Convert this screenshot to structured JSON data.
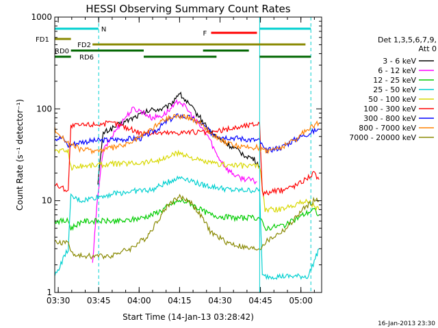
{
  "chart_data": {
    "type": "line",
    "title": "HESSI Observing Summary Count Rates",
    "xlabel": "Start Time (14-Jan-13 03:28:42)",
    "ylabel": "Count Rate (s⁻¹ detector⁻¹)",
    "x_unit": "minutes after 03:28:42",
    "xlim": [
      0,
      99
    ],
    "ylim": [
      1,
      1000
    ],
    "yscale": "log",
    "x_ticks": [
      {
        "label": "03:30",
        "value": 1.3
      },
      {
        "label": "03:45",
        "value": 16.3
      },
      {
        "label": "04:00",
        "value": 31.3
      },
      {
        "label": "04:15",
        "value": 46.3
      },
      {
        "label": "04:30",
        "value": 61.3
      },
      {
        "label": "04:45",
        "value": 76.3
      },
      {
        "label": "05:00",
        "value": 91.3
      }
    ],
    "y_ticks": [
      {
        "label": "1",
        "value": 1
      },
      {
        "label": "10",
        "value": 10
      },
      {
        "label": "100",
        "value": 100
      },
      {
        "label": "1000",
        "value": 1000
      }
    ],
    "legend": {
      "header": [
        "Det 1,3,5,6,7,9,",
        "Att 0"
      ],
      "placement": "right-outside"
    },
    "series": [
      {
        "name": "3 - 6 keV",
        "color": "#000000",
        "points": [
          [
            16,
            16
          ],
          [
            18,
            55
          ],
          [
            25,
            70
          ],
          [
            31,
            85
          ],
          [
            36,
            98
          ],
          [
            40,
            100
          ],
          [
            43,
            110
          ],
          [
            46,
            150
          ],
          [
            50,
            110
          ],
          [
            54,
            80
          ],
          [
            58,
            55
          ],
          [
            62,
            45
          ],
          [
            66,
            38
          ],
          [
            70,
            32
          ],
          [
            74,
            28
          ],
          [
            76,
            24
          ]
        ]
      },
      {
        "name": "6 - 12 keV",
        "color": "#ff00ff",
        "points": [
          [
            14,
            2
          ],
          [
            16,
            12
          ],
          [
            18,
            35
          ],
          [
            22,
            55
          ],
          [
            26,
            80
          ],
          [
            29,
            100
          ],
          [
            32,
            95
          ],
          [
            36,
            80
          ],
          [
            40,
            85
          ],
          [
            44,
            105
          ],
          [
            46,
            125
          ],
          [
            49,
            100
          ],
          [
            53,
            70
          ],
          [
            57,
            50
          ],
          [
            60,
            32
          ],
          [
            64,
            22
          ],
          [
            68,
            18
          ],
          [
            72,
            17
          ],
          [
            75,
            16
          ]
        ]
      },
      {
        "name": "12 - 25 keV",
        "color": "#00cc00",
        "points": [
          [
            0,
            6
          ],
          [
            5,
            6
          ],
          [
            6,
            5
          ],
          [
            10,
            6
          ],
          [
            18,
            6
          ],
          [
            26,
            6
          ],
          [
            32,
            6.5
          ],
          [
            36,
            7
          ],
          [
            40,
            8
          ],
          [
            44,
            9.5
          ],
          [
            47,
            10
          ],
          [
            50,
            9.5
          ],
          [
            54,
            8
          ],
          [
            58,
            7
          ],
          [
            66,
            6.5
          ],
          [
            76,
            6.5
          ],
          [
            78,
            5
          ],
          [
            86,
            5.5
          ],
          [
            92,
            7
          ],
          [
            96,
            8
          ],
          [
            98,
            7
          ]
        ]
      },
      {
        "name": "25 - 50 keV",
        "color": "#00d0d0",
        "points": [
          [
            0,
            1.5
          ],
          [
            5,
            3
          ],
          [
            6,
            11
          ],
          [
            10,
            10
          ],
          [
            16,
            11
          ],
          [
            22,
            12
          ],
          [
            32,
            13
          ],
          [
            36,
            13
          ],
          [
            40,
            15
          ],
          [
            44,
            17
          ],
          [
            47,
            18
          ],
          [
            50,
            17
          ],
          [
            54,
            15
          ],
          [
            60,
            14
          ],
          [
            66,
            13
          ],
          [
            76,
            13
          ],
          [
            77,
            1.5
          ],
          [
            94,
            1.5
          ],
          [
            97,
            2.5
          ],
          [
            98,
            3
          ]
        ]
      },
      {
        "name": "50 - 100 keV",
        "color": "#d8d800",
        "points": [
          [
            0,
            35
          ],
          [
            5,
            35
          ],
          [
            6,
            23
          ],
          [
            10,
            24
          ],
          [
            20,
            25
          ],
          [
            32,
            26
          ],
          [
            40,
            28
          ],
          [
            44,
            32
          ],
          [
            47,
            33
          ],
          [
            50,
            30
          ],
          [
            54,
            27
          ],
          [
            60,
            25
          ],
          [
            70,
            24
          ],
          [
            76,
            24
          ],
          [
            78,
            8
          ],
          [
            84,
            8
          ],
          [
            88,
            9
          ],
          [
            94,
            10
          ],
          [
            98,
            8
          ]
        ]
      },
      {
        "name": "100 - 300 keV",
        "color": "#ff0000",
        "points": [
          [
            0,
            15
          ],
          [
            5,
            13
          ],
          [
            6,
            65
          ],
          [
            14,
            68
          ],
          [
            22,
            70
          ],
          [
            32,
            55
          ],
          [
            40,
            55
          ],
          [
            44,
            55
          ],
          [
            47,
            56
          ],
          [
            52,
            56
          ],
          [
            58,
            55
          ],
          [
            64,
            60
          ],
          [
            70,
            65
          ],
          [
            76,
            70
          ],
          [
            77,
            12
          ],
          [
            84,
            13
          ],
          [
            90,
            15
          ],
          [
            96,
            20
          ],
          [
            98,
            17
          ]
        ]
      },
      {
        "name": "300 - 800 keV",
        "color": "#0000ff",
        "points": [
          [
            0,
            48
          ],
          [
            3,
            48
          ],
          [
            5,
            40
          ],
          [
            10,
            44
          ],
          [
            20,
            46
          ],
          [
            32,
            48
          ],
          [
            38,
            60
          ],
          [
            42,
            75
          ],
          [
            46,
            85
          ],
          [
            50,
            80
          ],
          [
            54,
            70
          ],
          [
            58,
            55
          ],
          [
            62,
            50
          ],
          [
            68,
            48
          ],
          [
            76,
            45
          ],
          [
            78,
            35
          ],
          [
            84,
            38
          ],
          [
            90,
            48
          ],
          [
            96,
            57
          ],
          [
            98,
            60
          ]
        ]
      },
      {
        "name": "800 - 7000 keV",
        "color": "#ff8000",
        "points": [
          [
            0,
            60
          ],
          [
            5,
            42
          ],
          [
            10,
            36
          ],
          [
            16,
            35
          ],
          [
            22,
            38
          ],
          [
            28,
            42
          ],
          [
            34,
            55
          ],
          [
            40,
            75
          ],
          [
            45,
            85
          ],
          [
            50,
            80
          ],
          [
            54,
            70
          ],
          [
            58,
            55
          ],
          [
            64,
            42
          ],
          [
            70,
            38
          ],
          [
            76,
            38
          ],
          [
            78,
            35
          ],
          [
            84,
            38
          ],
          [
            90,
            48
          ],
          [
            95,
            65
          ],
          [
            98,
            70
          ]
        ]
      },
      {
        "name": "7000 - 20000 keV",
        "color": "#888800",
        "points": [
          [
            0,
            3.5
          ],
          [
            5,
            3.5
          ],
          [
            7,
            2.5
          ],
          [
            12,
            2.5
          ],
          [
            20,
            2.5
          ],
          [
            28,
            3
          ],
          [
            34,
            4
          ],
          [
            38,
            6
          ],
          [
            42,
            9
          ],
          [
            46,
            11
          ],
          [
            50,
            10
          ],
          [
            54,
            7
          ],
          [
            58,
            4.5
          ],
          [
            64,
            3.5
          ],
          [
            72,
            3
          ],
          [
            76,
            3
          ],
          [
            78,
            3.5
          ],
          [
            86,
            5
          ],
          [
            92,
            8
          ],
          [
            96,
            10
          ],
          [
            98,
            10
          ]
        ]
      }
    ],
    "flag_bars": [
      {
        "label": "N",
        "color": "#00d0d0",
        "segments": [
          [
            0,
            16.2
          ],
          [
            76,
            95
          ]
        ]
      },
      {
        "label": "F",
        "color": "#ff0000",
        "segments": [
          [
            58,
            75
          ]
        ]
      },
      {
        "label": "FD1",
        "color": "#888800",
        "segments": [
          [
            0,
            6
          ]
        ]
      },
      {
        "label": "FD2",
        "color": "#888800",
        "segments": [
          [
            14,
            93
          ]
        ]
      },
      {
        "label": "RD0",
        "color": "#006600",
        "segments": [
          [
            6,
            33
          ],
          [
            55,
            72
          ]
        ]
      },
      {
        "label": "RD6",
        "color": "#006600",
        "segments": [
          [
            0,
            6
          ],
          [
            33,
            60
          ],
          [
            76,
            95
          ]
        ]
      }
    ],
    "vlines": [
      {
        "x": 16.3,
        "style": "dashed"
      },
      {
        "x": 95,
        "style": "dashed"
      },
      {
        "x": 76,
        "style": "solid"
      }
    ],
    "footer_stamp": "16-Jan-2013 23:30",
    "grid": false
  }
}
